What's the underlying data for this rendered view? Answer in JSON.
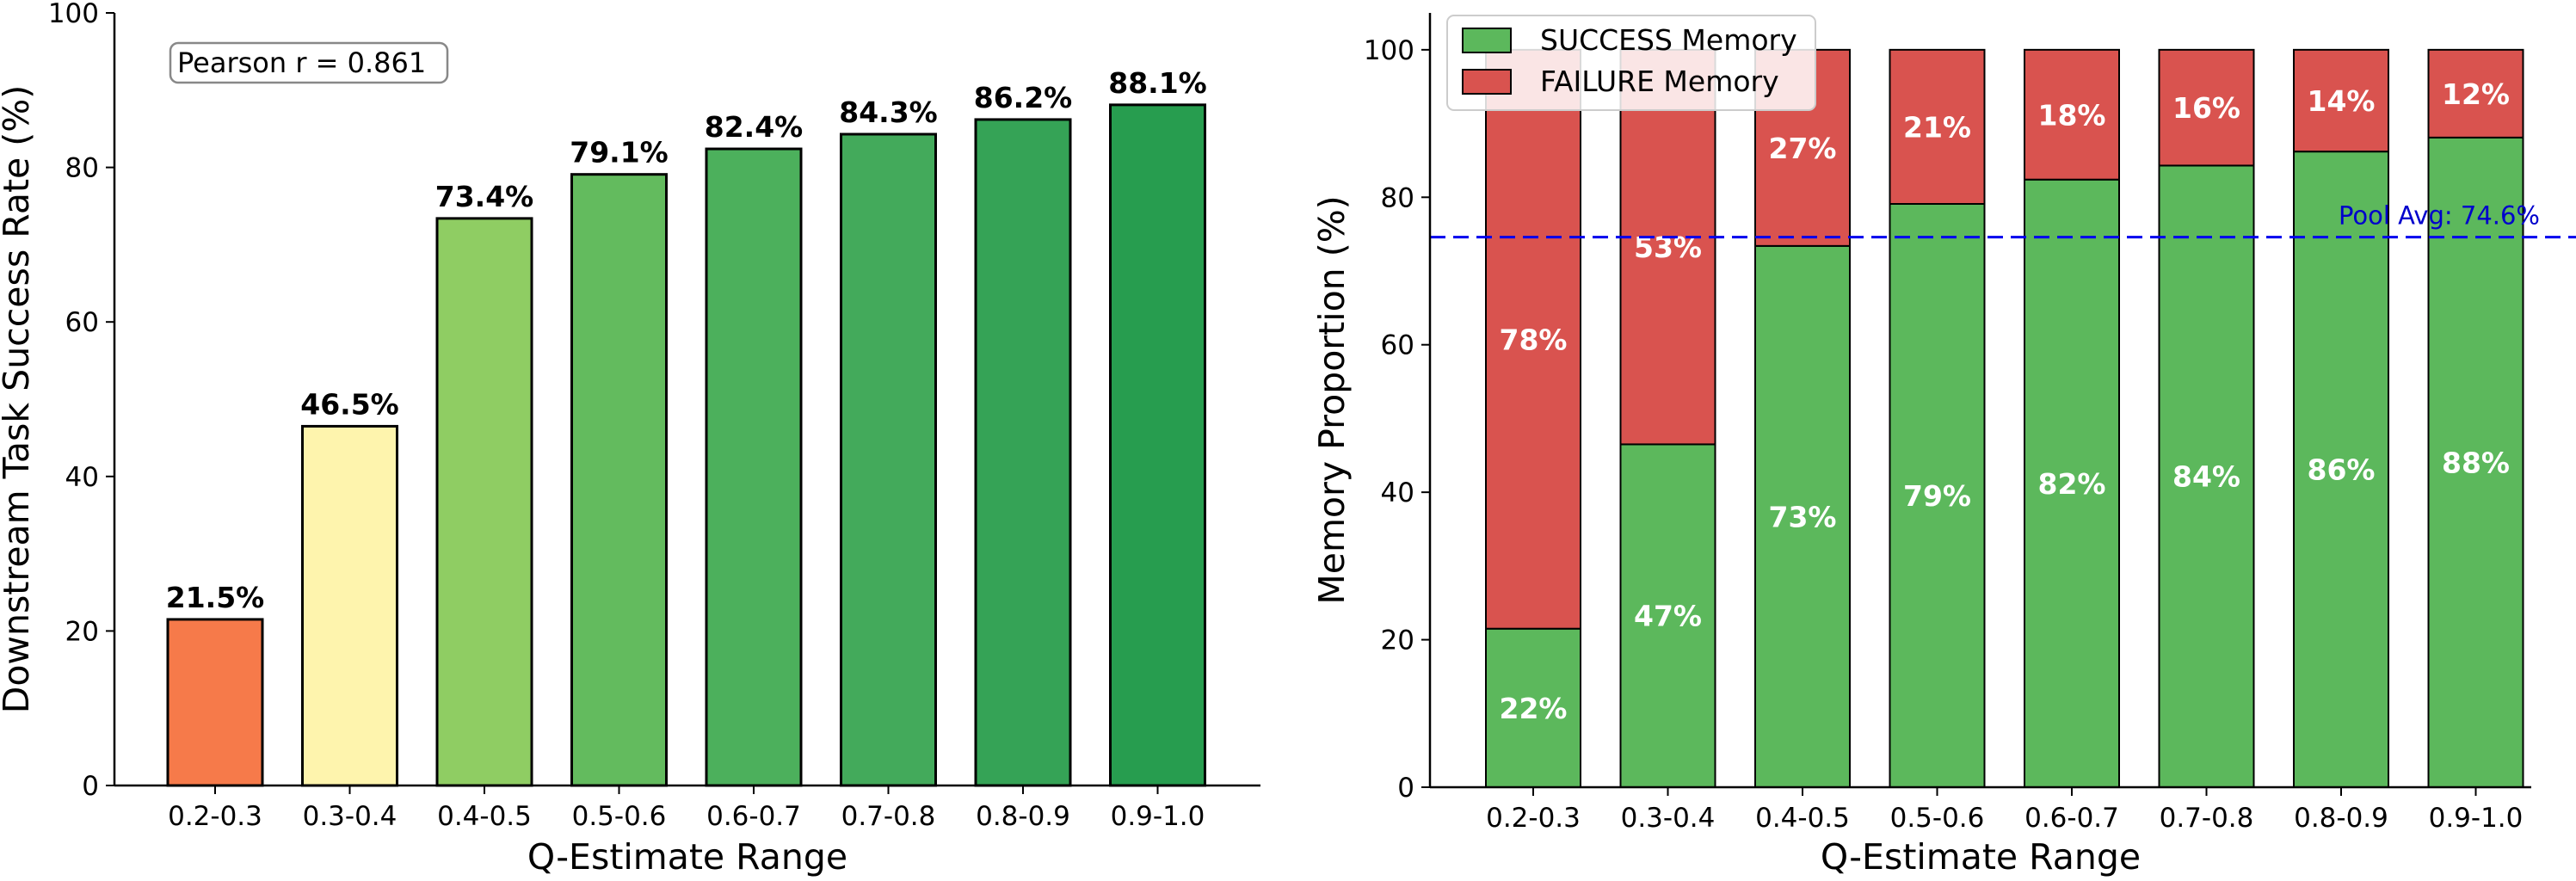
{
  "chart_data": [
    {
      "type": "bar",
      "categories": [
        "0.2-0.3",
        "0.3-0.4",
        "0.4-0.5",
        "0.5-0.6",
        "0.6-0.7",
        "0.7-0.8",
        "0.8-0.9",
        "0.9-1.0"
      ],
      "values": [
        21.5,
        46.5,
        73.4,
        79.1,
        82.4,
        84.3,
        86.2,
        88.1
      ],
      "data_labels": [
        "21.5%",
        "46.5%",
        "73.4%",
        "79.1%",
        "82.4%",
        "84.3%",
        "86.2%",
        "88.1%"
      ],
      "colors": [
        "#f67a4a",
        "#fef4ad",
        "#8fcd63",
        "#63bb5e",
        "#4cb05c",
        "#43aa5b",
        "#35a356",
        "#279d4f"
      ],
      "xlabel": "Q-Estimate Range",
      "ylabel": "Downstream Task Success Rate (%)",
      "ylim": [
        0,
        100
      ],
      "yticks": [
        0,
        20,
        40,
        60,
        80,
        100
      ],
      "annotation": "Pearson r = 0.861",
      "annotation_position": "top-left",
      "grid": false
    },
    {
      "type": "bar",
      "stacked": true,
      "categories": [
        "0.2-0.3",
        "0.3-0.4",
        "0.4-0.5",
        "0.5-0.6",
        "0.6-0.7",
        "0.7-0.8",
        "0.8-0.9",
        "0.9-1.0"
      ],
      "series": [
        {
          "name": "SUCCESS Memory",
          "color": "#5cb85c",
          "values": [
            21.5,
            46.5,
            73.4,
            79.1,
            82.4,
            84.3,
            86.2,
            88.1
          ],
          "labels": [
            "22%",
            "47%",
            "73%",
            "79%",
            "82%",
            "84%",
            "86%",
            "88%"
          ]
        },
        {
          "name": "FAILURE Memory",
          "color": "#d9534f",
          "values": [
            78.5,
            53.5,
            26.6,
            20.9,
            17.6,
            15.7,
            13.8,
            11.9
          ],
          "labels": [
            "78%",
            "53%",
            "27%",
            "21%",
            "18%",
            "16%",
            "14%",
            "12%"
          ]
        }
      ],
      "xlabel": "Q-Estimate Range",
      "ylabel": "Memory Proportion (%)",
      "ylim": [
        0,
        105
      ],
      "yticks": [
        0,
        20,
        40,
        60,
        80,
        100
      ],
      "reference_line": {
        "value": 74.6,
        "label": "Pool Avg: 74.6%",
        "color": "#0000ee",
        "style": "dashed"
      },
      "legend_placement": "top-left",
      "grid": false
    }
  ]
}
